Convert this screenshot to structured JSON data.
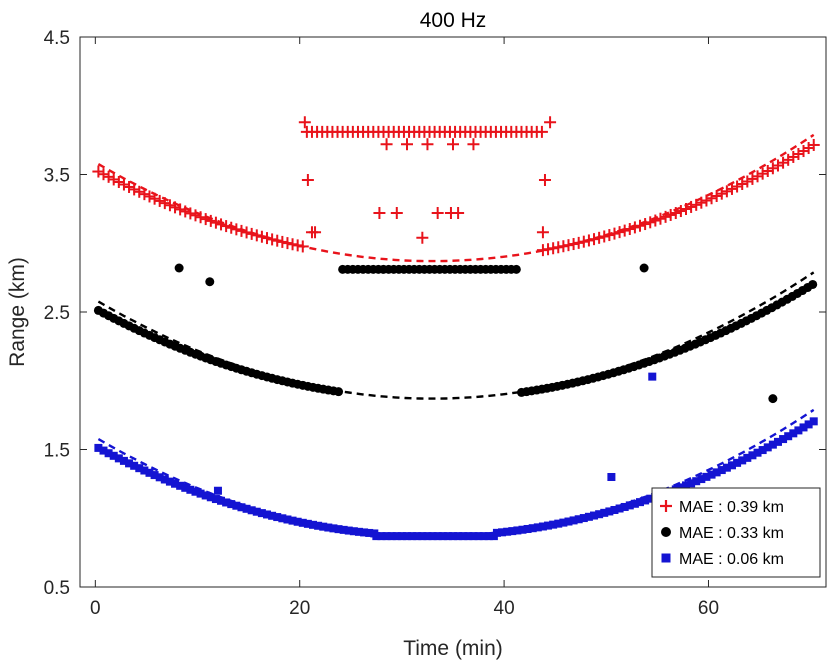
{
  "chart_data": {
    "type": "scatter",
    "title": "400 Hz",
    "xlabel": "Time (min)",
    "ylabel": "Range (km)",
    "xlim": [
      -1.5,
      71.5
    ],
    "ylim": [
      0.5,
      4.5
    ],
    "xticks": [
      0,
      20,
      40,
      60
    ],
    "xtick_labels": [
      "0",
      "20",
      "40",
      "60"
    ],
    "yticks": [
      0.5,
      1.5,
      2.5,
      3.5,
      4.5
    ],
    "ytick_labels": [
      "0.5",
      "1.5",
      "2.5",
      "3.5",
      "4.5"
    ],
    "legend_position": "bottom-right",
    "series": [
      {
        "name": "MAE : 0.39 km",
        "color": "#e8131b",
        "marker": "plus",
        "segments": [
          {
            "x0": 0.3,
            "x1": 20.3,
            "step": 0.5,
            "model": "red"
          },
          {
            "x0": 43.8,
            "x1": 70.3,
            "step": 0.5,
            "model": "red"
          },
          {
            "x0": 20.7,
            "x1": 44.0,
            "step": 0.5,
            "constant": 3.81
          }
        ],
        "extra_points": [
          [
            20.5,
            3.88
          ],
          [
            20.8,
            3.46
          ],
          [
            21.2,
            3.08
          ],
          [
            21.5,
            3.08
          ],
          [
            27.8,
            3.22
          ],
          [
            29.5,
            3.22
          ],
          [
            32.0,
            3.04
          ],
          [
            33.5,
            3.22
          ],
          [
            34.8,
            3.22
          ],
          [
            35.5,
            3.22
          ],
          [
            28.5,
            3.72
          ],
          [
            30.5,
            3.72
          ],
          [
            32.5,
            3.72
          ],
          [
            35.0,
            3.72
          ],
          [
            37.0,
            3.72
          ],
          [
            44.0,
            3.46
          ],
          [
            43.8,
            3.08
          ],
          [
            44.5,
            3.88
          ]
        ]
      },
      {
        "name": "MAE : 0.33 km",
        "color": "#000000",
        "marker": "circle",
        "segments": [
          {
            "x0": 0.3,
            "x1": 24.2,
            "step": 0.5,
            "model": "black"
          },
          {
            "x0": 24.2,
            "x1": 41.3,
            "step": 0.5,
            "constant": 2.81
          },
          {
            "x0": 41.7,
            "x1": 70.3,
            "step": 0.5,
            "model": "black"
          }
        ],
        "extra_points": [
          [
            8.2,
            2.82
          ],
          [
            11.2,
            2.72
          ],
          [
            53.7,
            2.82
          ],
          [
            66.3,
            1.87
          ]
        ]
      },
      {
        "name": "MAE : 0.06 km",
        "color": "#1414d2",
        "marker": "square",
        "segments": [
          {
            "x0": 0.3,
            "x1": 27.5,
            "step": 0.5,
            "model": "blue"
          },
          {
            "x0": 27.5,
            "x1": 39.3,
            "step": 0.5,
            "constant": 0.87
          },
          {
            "x0": 39.3,
            "x1": 70.3,
            "step": 0.5,
            "model": "blue"
          }
        ],
        "extra_points": [
          [
            12.0,
            1.2
          ],
          [
            50.5,
            1.3
          ],
          [
            54.5,
            2.03
          ]
        ]
      }
    ],
    "reference_curves": [
      {
        "series": "MAE : 0.39 km",
        "color": "#e8131b",
        "style": "dashed",
        "vertex_x": 33.0,
        "vertex_y": 2.87,
        "coefficient": 0.00066
      },
      {
        "series": "MAE : 0.33 km",
        "color": "#000000",
        "style": "dashed",
        "vertex_x": 33.0,
        "vertex_y": 1.87,
        "coefficient": 0.00066
      },
      {
        "series": "MAE : 0.06 km",
        "color": "#1414d2",
        "style": "dashed",
        "vertex_x": 33.0,
        "vertex_y": 0.87,
        "coefficient": 0.00066
      }
    ],
    "point_models": [
      {
        "id": "red",
        "vertex_x": 33.0,
        "vertex_y": 2.88,
        "coefficient": 0.0006,
        "min": 2.88
      },
      {
        "id": "black",
        "vertex_x": 33.0,
        "vertex_y": 1.87,
        "coefficient": 0.0006,
        "min": 1.87
      },
      {
        "id": "blue",
        "vertex_x": 33.0,
        "vertex_y": 0.87,
        "coefficient": 0.0006,
        "min": 0.87
      }
    ]
  }
}
